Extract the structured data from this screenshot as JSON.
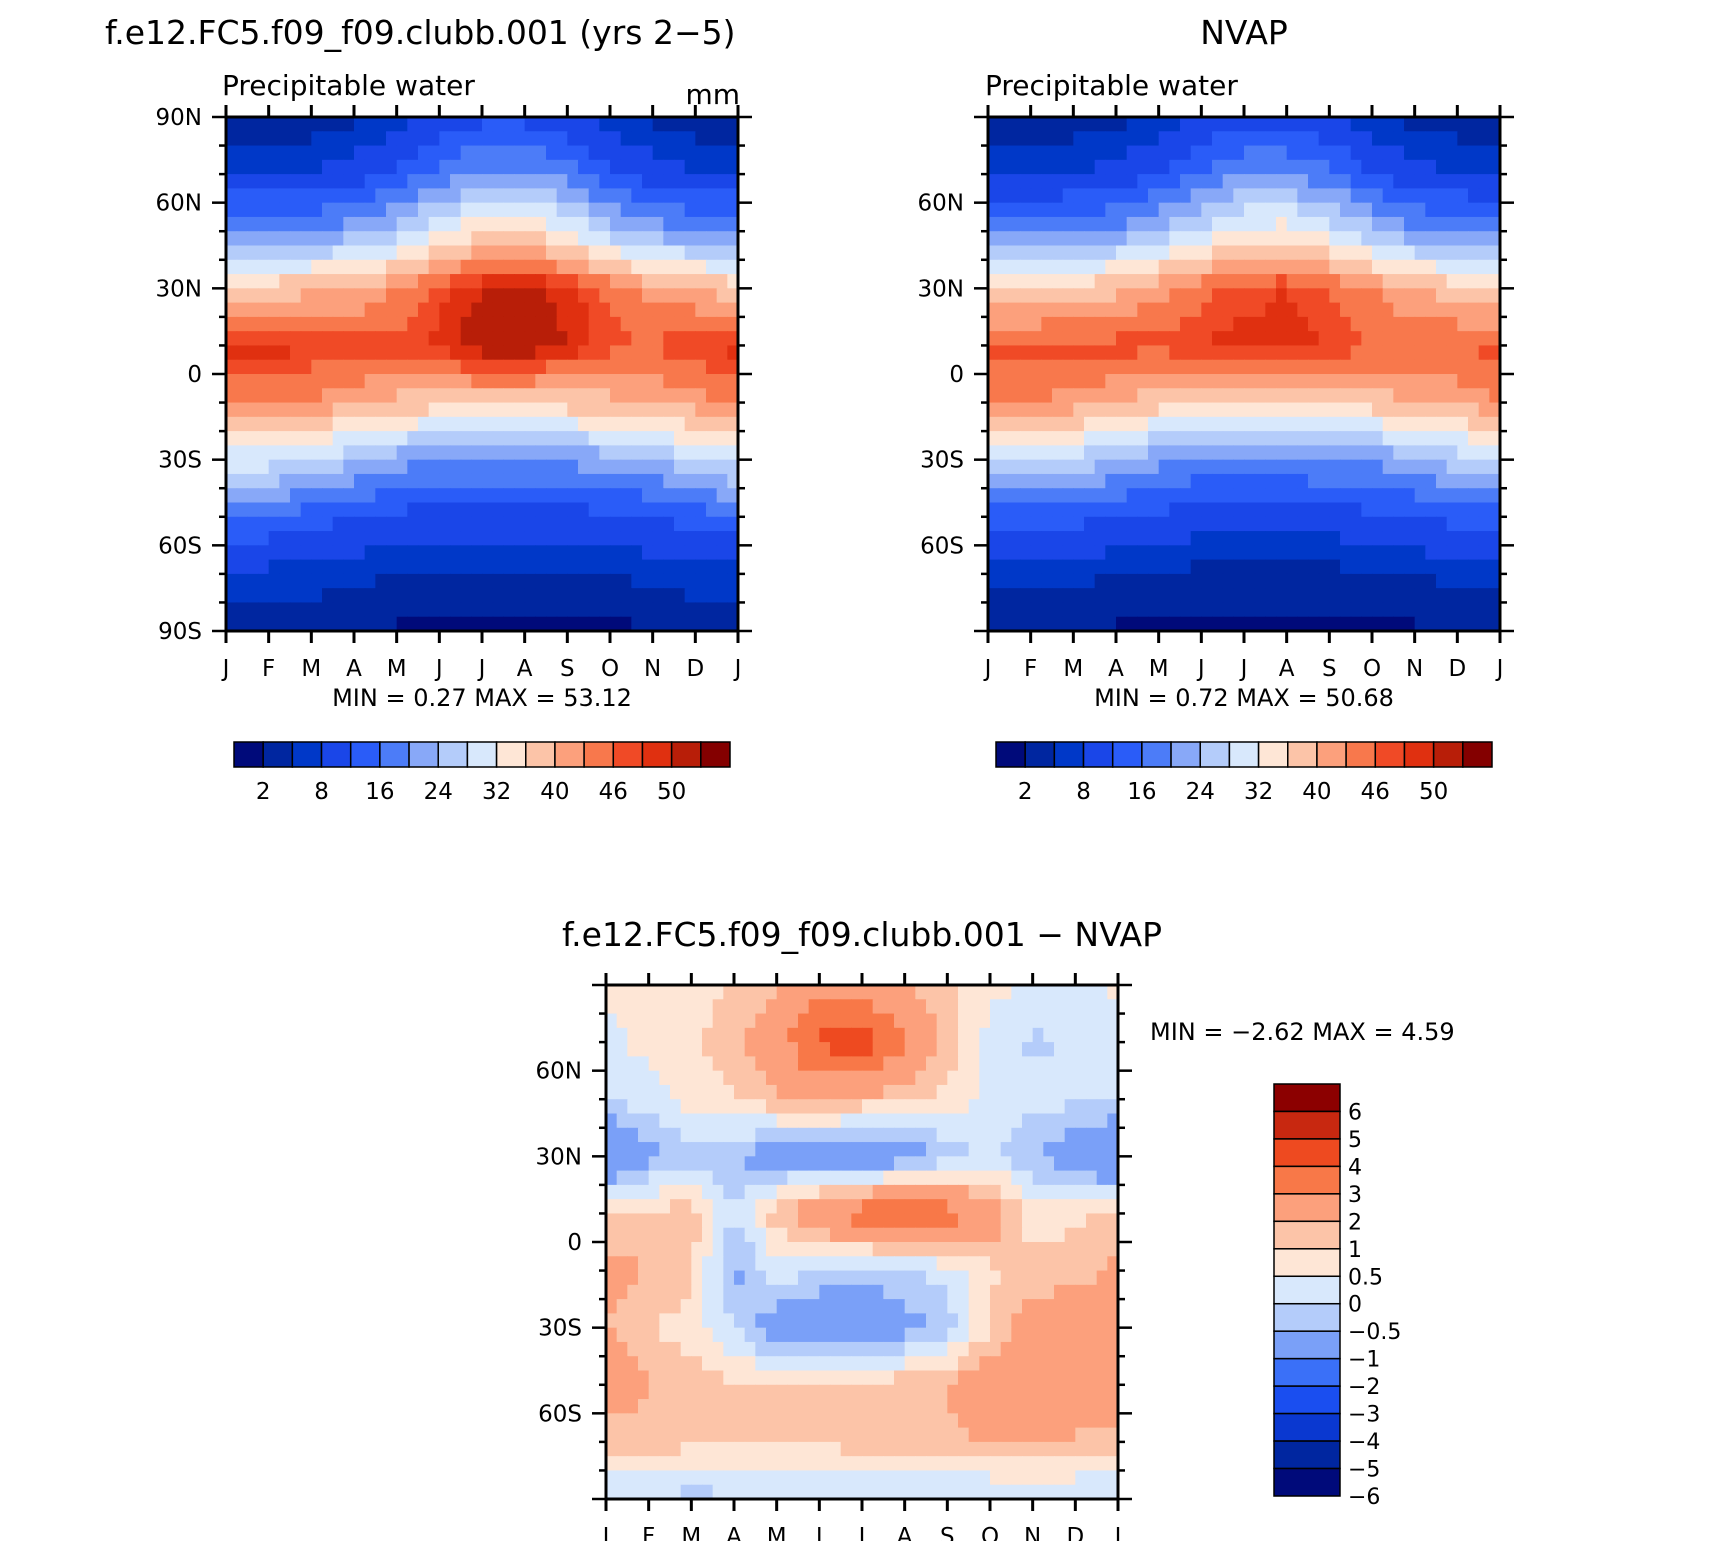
{
  "months": [
    "J",
    "F",
    "M",
    "A",
    "M",
    "J",
    "J",
    "A",
    "S",
    "O",
    "N",
    "D",
    "J"
  ],
  "panels": [
    {
      "id": "model",
      "title": "f.e12.FC5.f09_f09.clubb.001 (yrs 2−5)",
      "subtitle": "Precipitable water",
      "units": "mm",
      "min_max": "MIN =     0.27  MAX =    53.12",
      "lat_labels": [
        "90N",
        "60N",
        "30N",
        "0",
        "30S",
        "60S",
        "90S"
      ],
      "colorbar_labels": [
        "2",
        "8",
        "16",
        "24",
        "32",
        "40",
        "46",
        "50"
      ]
    },
    {
      "id": "obs",
      "title": "NVAP",
      "subtitle": "Precipitable water",
      "min_max": "MIN =     0.72  MAX =    50.68",
      "lat_labels": [
        "60N",
        "30N",
        "0",
        "30S",
        "60S"
      ],
      "colorbar_labels": [
        "2",
        "8",
        "16",
        "24",
        "32",
        "40",
        "46",
        "50"
      ]
    },
    {
      "id": "diff",
      "title": "f.e12.FC5.f09_f09.clubb.001  −  NVAP",
      "min_max": "MIN =    −2.62  MAX =     4.59",
      "lat_labels": [
        "60N",
        "30N",
        "0",
        "30S",
        "60S"
      ],
      "colorbar_labels": [
        "6",
        "5",
        "4",
        "3",
        "2",
        "1",
        "0.5",
        "0",
        "−0.5",
        "−1",
        "−2",
        "−3",
        "−4",
        "−5",
        "−6"
      ]
    }
  ],
  "chart_data": [
    {
      "type": "heatmap",
      "title": "f.e12.FC5.f09_f09.clubb.001 (yrs 2−5)",
      "subtitle": "Precipitable water",
      "units": "mm",
      "x": [
        "J",
        "F",
        "M",
        "A",
        "M",
        "J",
        "J",
        "A",
        "S",
        "O",
        "N",
        "D",
        "J"
      ],
      "y": [
        "90N",
        "60N",
        "30N",
        "0",
        "30S",
        "60S",
        "90S"
      ],
      "ylim": [
        -90,
        90
      ],
      "min": 0.27,
      "max": 53.12,
      "levels": [
        2,
        5,
        8,
        12,
        16,
        20,
        24,
        28,
        32,
        36,
        40,
        43,
        46,
        48,
        50
      ],
      "values": [
        [
          3,
          3,
          3,
          4,
          6,
          9,
          11,
          11,
          9,
          6,
          4,
          3,
          3
        ],
        [
          8,
          8,
          8,
          10,
          13,
          17,
          21,
          21,
          18,
          13,
          10,
          8,
          8
        ],
        [
          19,
          19,
          20,
          22,
          26,
          31,
          36,
          36,
          32,
          26,
          22,
          20,
          19
        ],
        [
          38,
          38,
          39,
          40,
          43,
          47,
          50,
          51,
          49,
          45,
          42,
          40,
          38
        ],
        [
          49,
          49,
          48,
          47,
          47,
          49,
          52,
          52,
          50,
          47,
          46,
          48,
          49
        ],
        [
          44,
          44,
          43,
          41,
          39,
          38,
          38,
          38,
          38,
          39,
          40,
          42,
          44
        ],
        [
          30,
          30,
          28,
          25,
          22,
          20,
          20,
          20,
          21,
          22,
          24,
          28,
          30
        ],
        [
          15,
          15,
          14,
          12,
          11,
          10,
          10,
          10,
          10,
          11,
          12,
          14,
          15
        ],
        [
          7,
          7,
          7,
          6,
          5,
          5,
          5,
          5,
          5,
          5,
          6,
          7,
          7
        ],
        [
          2,
          2,
          2,
          2,
          1.5,
          1.5,
          1.5,
          1.5,
          1.5,
          1.5,
          1.5,
          2,
          2
        ]
      ]
    },
    {
      "type": "heatmap",
      "title": "NVAP",
      "subtitle": "Precipitable water",
      "x": [
        "J",
        "F",
        "M",
        "A",
        "M",
        "J",
        "J",
        "A",
        "S",
        "O",
        "N",
        "D",
        "J"
      ],
      "y": [
        "60N",
        "30N",
        "0",
        "30S",
        "60S"
      ],
      "ylim": [
        -90,
        90
      ],
      "min": 0.72,
      "max": 50.68,
      "levels": [
        2,
        5,
        8,
        12,
        16,
        20,
        24,
        28,
        32,
        36,
        40,
        43,
        46,
        48,
        50
      ],
      "values": [
        [
          3,
          3,
          3,
          4,
          6,
          8,
          10,
          10,
          8,
          6,
          4,
          3,
          3
        ],
        [
          8,
          8,
          8,
          9,
          12,
          16,
          20,
          20,
          17,
          12,
          9,
          8,
          8
        ],
        [
          18,
          18,
          19,
          21,
          25,
          29,
          33,
          34,
          30,
          25,
          21,
          19,
          18
        ],
        [
          36,
          36,
          37,
          39,
          42,
          45,
          47,
          48,
          46,
          43,
          40,
          38,
          36
        ],
        [
          47,
          47,
          47,
          47,
          47,
          48,
          49,
          49,
          48,
          46,
          45,
          46,
          47
        ],
        [
          43,
          43,
          42,
          40,
          38,
          37,
          37,
          37,
          37,
          38,
          40,
          41,
          43
        ],
        [
          28,
          28,
          27,
          24,
          21,
          19,
          19,
          19,
          20,
          21,
          23,
          26,
          28
        ],
        [
          14,
          14,
          13,
          12,
          11,
          10,
          10,
          10,
          10,
          11,
          12,
          13,
          14
        ],
        [
          6,
          6,
          6,
          5,
          5,
          4,
          4,
          4,
          4,
          5,
          5,
          6,
          6
        ],
        [
          2,
          2,
          2,
          1.5,
          1.5,
          1,
          1,
          1,
          1,
          1.5,
          1.5,
          2,
          2
        ]
      ]
    },
    {
      "type": "heatmap",
      "title": "f.e12.FC5.f09_f09.clubb.001  −  NVAP",
      "x": [
        "J",
        "F",
        "M",
        "A",
        "M",
        "J",
        "J",
        "A",
        "S",
        "O",
        "N",
        "D",
        "J"
      ],
      "y": [
        "60N",
        "30N",
        "0",
        "30S",
        "60S"
      ],
      "ylim": [
        -90,
        90
      ],
      "min": -2.62,
      "max": 4.59,
      "levels": [
        -6,
        -5,
        -4,
        -3,
        -2,
        -1,
        -0.5,
        0,
        0.5,
        1,
        2,
        3,
        4,
        5,
        6
      ],
      "values": [
        [
          0.1,
          0.2,
          0.3,
          0.5,
          1.0,
          1.5,
          1.5,
          1.0,
          0.6,
          0.2,
          -0.2,
          -0.3,
          0.1
        ],
        [
          -0.2,
          0.2,
          0.4,
          0.8,
          1.5,
          3.2,
          3.5,
          2.2,
          0.8,
          -0.2,
          -0.6,
          -0.4,
          -0.2
        ],
        [
          -0.4,
          -0.3,
          0.2,
          0.5,
          0.9,
          1.2,
          0.8,
          0.6,
          0.3,
          -0.2,
          -0.3,
          -0.4,
          -0.4
        ],
        [
          -2.2,
          -1.2,
          -0.8,
          -1.0,
          -1.5,
          -1.5,
          -2.0,
          -1.5,
          -0.8,
          -0.3,
          -1.0,
          -1.5,
          -2.2
        ],
        [
          0.5,
          0.6,
          0.8,
          -0.5,
          0.8,
          1.8,
          2.5,
          3.0,
          2.5,
          1.5,
          0.3,
          0.4,
          0.5
        ],
        [
          1.2,
          1.0,
          0.6,
          -1.2,
          -0.2,
          -0.5,
          -0.8,
          -0.6,
          -0.3,
          0.4,
          0.6,
          0.8,
          1.2
        ],
        [
          1.0,
          0.5,
          0.3,
          -0.5,
          -1.5,
          -1.8,
          -1.6,
          -1.3,
          -0.8,
          0.5,
          1.5,
          1.5,
          1.0
        ],
        [
          1.5,
          1.0,
          0.7,
          0.6,
          0.5,
          0.6,
          0.7,
          0.8,
          1.0,
          1.5,
          1.5,
          1.2,
          1.5
        ],
        [
          0.7,
          0.8,
          0.6,
          0.6,
          0.6,
          0.6,
          0.7,
          0.7,
          0.9,
          1.0,
          1.2,
          1.0,
          0.7
        ],
        [
          -0.6,
          -0.6,
          -0.7,
          -0.6,
          -0.5,
          -0.6,
          -0.5,
          -0.5,
          -0.6,
          -0.6,
          -0.7,
          -0.6,
          -0.6
        ]
      ]
    }
  ],
  "palettes": {
    "precip": [
      "#000A7A",
      "#0026A0",
      "#0038C8",
      "#1A46E8",
      "#2A5CF8",
      "#4C7CF8",
      "#88A8F8",
      "#B4CCFA",
      "#D8E8FC",
      "#FEE6D6",
      "#FCC4A8",
      "#FCA07C",
      "#F8784C",
      "#F04A26",
      "#E03010",
      "#B81E08",
      "#840000"
    ],
    "diff": [
      "#000A7A",
      "#0026A0",
      "#0A38D0",
      "#1A4EF0",
      "#3A70F8",
      "#7AA0F8",
      "#B4CCFA",
      "#D8E8FC",
      "#FEE6D6",
      "#FCC4A8",
      "#FCA07C",
      "#F87848",
      "#EE4A20",
      "#C82810",
      "#8C0000"
    ]
  }
}
